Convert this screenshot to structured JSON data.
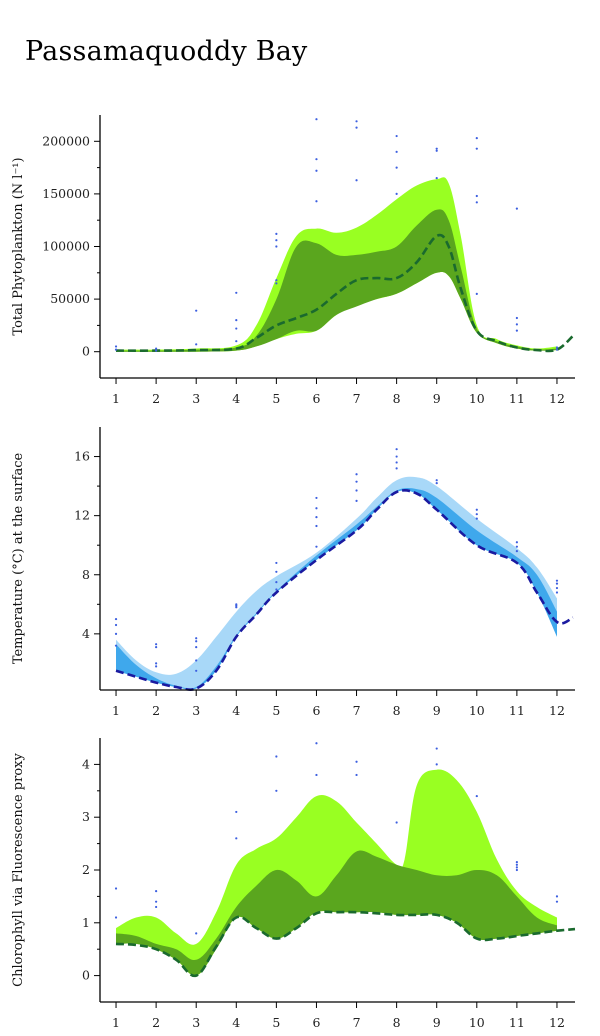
{
  "title": "Passamaquoddy Bay",
  "colors": {
    "light_green": "#99ff22",
    "dark_green": "#5aa61e",
    "green_line": "#1a6a2e",
    "light_blue": "#a8d8f8",
    "mid_blue": "#3fa8ec",
    "blue_line": "#1a1aa0",
    "point_blue": "#3c5fe0"
  },
  "chart_data": [
    {
      "id": "phyto",
      "type": "area",
      "ylabel": "Total Phytoplankton (N l⁻¹)",
      "xlim": [
        0.6,
        12.45
      ],
      "ylim": [
        -25000,
        225000
      ],
      "yticks": [
        0,
        50000,
        100000,
        150000,
        200000
      ],
      "ytick_labels": [
        "0",
        "50000",
        "100000",
        "150000",
        "200000"
      ],
      "xticks": [
        1,
        2,
        3,
        4,
        5,
        6,
        7,
        8,
        9,
        10,
        11,
        12
      ],
      "xtick_labels": [
        "1",
        "2",
        "3",
        "4",
        "5",
        "6",
        "7",
        "8",
        "9",
        "10",
        "11",
        "12"
      ],
      "outer_band": {
        "x": [
          1,
          2,
          3,
          4,
          4.5,
          5,
          5.5,
          6,
          6.5,
          7,
          7.5,
          8,
          8.5,
          9,
          9.3,
          9.6,
          10,
          10.5,
          11,
          11.5,
          12
        ],
        "upper": [
          2000,
          2000,
          3000,
          6000,
          25000,
          70000,
          110000,
          117000,
          113000,
          118000,
          130000,
          145000,
          158000,
          164000,
          160000,
          110000,
          25000,
          12000,
          6000,
          3000,
          5000
        ],
        "lower": [
          0,
          0,
          0,
          1000,
          5000,
          12000,
          17000,
          20000,
          35000,
          45000,
          50000,
          55000,
          65000,
          75000,
          72000,
          50000,
          18000,
          8000,
          3000,
          1000,
          1500
        ]
      },
      "inner_band": {
        "x": [
          1,
          2,
          3,
          4,
          4.5,
          5,
          5.5,
          6,
          6.5,
          7,
          7.5,
          8,
          8.5,
          9,
          9.3,
          9.6,
          10,
          10.5,
          11,
          11.5,
          12
        ],
        "upper": [
          1000,
          1000,
          2000,
          4000,
          15000,
          50000,
          100000,
          103000,
          92000,
          92000,
          95000,
          100000,
          120000,
          135000,
          125000,
          80000,
          22000,
          10000,
          5000,
          2000,
          3000
        ],
        "lower": [
          0,
          0,
          0,
          1000,
          5000,
          12000,
          20000,
          20000,
          35000,
          43000,
          50000,
          55000,
          65000,
          75000,
          72000,
          50000,
          18000,
          8000,
          3000,
          1000,
          1500
        ]
      },
      "median": {
        "x": [
          1,
          2,
          3,
          4,
          4.5,
          5,
          5.5,
          6,
          6.5,
          7,
          7.5,
          8,
          8.5,
          9,
          9.3,
          9.6,
          10,
          10.5,
          11,
          11.5,
          12,
          12.4
        ],
        "y": [
          1000,
          1000,
          1500,
          3000,
          13000,
          25000,
          32000,
          40000,
          55000,
          68000,
          70000,
          70000,
          85000,
          110000,
          100000,
          60000,
          20000,
          10000,
          4000,
          1500,
          2000,
          15000
        ]
      },
      "points": [
        [
          1,
          2000
        ],
        [
          1,
          5000
        ],
        [
          2,
          1000
        ],
        [
          2,
          3000
        ],
        [
          3,
          7000
        ],
        [
          3,
          39000
        ],
        [
          4,
          10000
        ],
        [
          4,
          22000
        ],
        [
          4,
          30000
        ],
        [
          4,
          56000
        ],
        [
          5,
          65000
        ],
        [
          5,
          68000
        ],
        [
          5,
          100000
        ],
        [
          5,
          106000
        ],
        [
          5,
          112000
        ],
        [
          6,
          143000
        ],
        [
          6,
          172000
        ],
        [
          6,
          183000
        ],
        [
          6,
          221000
        ],
        [
          7,
          163000
        ],
        [
          7,
          213000
        ],
        [
          7,
          219000
        ],
        [
          8,
          150000
        ],
        [
          8,
          175000
        ],
        [
          8,
          190000
        ],
        [
          8,
          205000
        ],
        [
          9,
          165000
        ],
        [
          9,
          191000
        ],
        [
          9,
          193000
        ],
        [
          10,
          55000
        ],
        [
          10,
          142000
        ],
        [
          10,
          148000
        ],
        [
          10,
          193000
        ],
        [
          10,
          203000
        ],
        [
          11,
          20000
        ],
        [
          11,
          26000
        ],
        [
          11,
          32000
        ],
        [
          11,
          136000
        ],
        [
          12,
          2000
        ],
        [
          12,
          4000
        ]
      ]
    },
    {
      "id": "temp",
      "type": "area",
      "ylabel": "Temperature (°C) at the surface",
      "xlim": [
        0.6,
        12.45
      ],
      "ylim": [
        0.2,
        18
      ],
      "yticks": [
        4,
        8,
        12,
        16
      ],
      "ytick_labels": [
        "4",
        "8",
        "12",
        "16"
      ],
      "xticks": [
        1,
        2,
        3,
        4,
        5,
        6,
        7,
        8,
        9,
        10,
        11,
        12
      ],
      "xtick_labels": [
        "1",
        "2",
        "3",
        "4",
        "5",
        "6",
        "7",
        "8",
        "9",
        "10",
        "11",
        "12"
      ],
      "outer_band": {
        "x": [
          1,
          1.5,
          2,
          2.5,
          3,
          3.5,
          4,
          4.5,
          5,
          6,
          7,
          7.5,
          8,
          8.5,
          9,
          10,
          11,
          11.5,
          12
        ],
        "upper": [
          3.6,
          2.2,
          1.4,
          1.3,
          2.2,
          3.8,
          5.5,
          6.9,
          7.9,
          9.5,
          11.8,
          13.2,
          14.4,
          14.6,
          14.0,
          11.8,
          9.8,
          8.5,
          6.4
        ],
        "lower": [
          1.5,
          1.1,
          0.7,
          0.4,
          0.3,
          1.5,
          3.8,
          5.3,
          6.8,
          9.0,
          11.0,
          12.4,
          13.6,
          13.5,
          12.4,
          10.0,
          8.8,
          6.8,
          3.8
        ]
      },
      "inner_band": {
        "x": [
          1,
          1.5,
          2,
          2.5,
          3,
          3.5,
          4,
          4.5,
          5,
          6,
          7,
          7.5,
          8,
          8.5,
          9,
          10,
          11,
          11.5,
          12
        ],
        "upper": [
          3.3,
          1.9,
          1.0,
          0.5,
          0.4,
          1.8,
          3.9,
          5.4,
          6.9,
          9.3,
          11.4,
          12.6,
          13.7,
          13.8,
          13.2,
          11.0,
          9.2,
          8.0,
          5.5
        ],
        "lower": [
          1.5,
          1.1,
          0.7,
          0.4,
          0.3,
          1.5,
          3.8,
          5.3,
          6.8,
          9.0,
          11.0,
          12.4,
          13.6,
          13.5,
          12.4,
          10.0,
          8.8,
          6.8,
          3.8
        ]
      },
      "median": {
        "x": [
          1,
          1.5,
          2,
          2.5,
          3,
          3.5,
          4,
          4.5,
          5,
          6,
          7,
          7.5,
          8,
          8.5,
          9,
          10,
          11,
          11.5,
          12,
          12.4
        ],
        "y": [
          1.5,
          1.1,
          0.7,
          0.4,
          0.3,
          1.5,
          3.8,
          5.3,
          6.8,
          9.0,
          11.0,
          12.4,
          13.6,
          13.5,
          12.4,
          10.0,
          8.8,
          6.8,
          4.8,
          5.1
        ]
      },
      "points": [
        [
          1,
          3.2
        ],
        [
          1,
          4.0
        ],
        [
          1,
          4.6
        ],
        [
          1,
          5.0
        ],
        [
          2,
          1.8
        ],
        [
          2,
          2.0
        ],
        [
          2,
          3.1
        ],
        [
          2,
          3.3
        ],
        [
          3,
          1.5
        ],
        [
          3,
          2.2
        ],
        [
          3,
          3.1
        ],
        [
          3,
          3.5
        ],
        [
          3,
          3.7
        ],
        [
          4,
          5.8
        ],
        [
          4,
          5.9
        ],
        [
          4,
          6.0
        ],
        [
          5,
          7.0
        ],
        [
          5,
          7.5
        ],
        [
          5,
          8.2
        ],
        [
          5,
          8.8
        ],
        [
          6,
          9.9
        ],
        [
          6,
          11.3
        ],
        [
          6,
          11.9
        ],
        [
          6,
          12.5
        ],
        [
          6,
          13.2
        ],
        [
          7,
          13.0
        ],
        [
          7,
          13.7
        ],
        [
          7,
          14.3
        ],
        [
          7,
          14.8
        ],
        [
          8,
          15.2
        ],
        [
          8,
          15.6
        ],
        [
          8,
          16.0
        ],
        [
          8,
          16.5
        ],
        [
          9,
          14.2
        ],
        [
          9,
          14.4
        ],
        [
          10,
          11.8
        ],
        [
          10,
          12.1
        ],
        [
          10,
          12.4
        ],
        [
          11,
          9.6
        ],
        [
          11,
          9.9
        ],
        [
          11,
          10.2
        ],
        [
          12,
          6.8
        ],
        [
          12,
          7.1
        ],
        [
          12,
          7.4
        ],
        [
          12,
          7.6
        ]
      ]
    },
    {
      "id": "chl",
      "type": "area",
      "ylabel": "Chlorophyll via Fluorescence proxy",
      "xlim": [
        0.6,
        12.45
      ],
      "ylim": [
        -0.5,
        4.5
      ],
      "yticks": [
        0,
        1,
        2,
        3,
        4
      ],
      "ytick_labels": [
        "0",
        "1",
        "2",
        "3",
        "4"
      ],
      "xticks": [
        1,
        2,
        3,
        4,
        5,
        6,
        7,
        8,
        9,
        10,
        11,
        12
      ],
      "xtick_labels": [
        "1",
        "2",
        "3",
        "4",
        "5",
        "6",
        "7",
        "8",
        "9",
        "10",
        "11",
        "12"
      ],
      "outer_band": {
        "x": [
          1,
          1.5,
          2,
          2.5,
          3,
          3.5,
          4,
          4.5,
          5,
          5.5,
          6,
          6.5,
          7,
          7.5,
          8,
          8.2,
          8.5,
          9,
          9.5,
          10,
          10.5,
          11,
          11.5,
          12
        ],
        "upper": [
          0.9,
          1.1,
          1.1,
          0.8,
          0.6,
          1.2,
          2.1,
          2.4,
          2.6,
          3.0,
          3.4,
          3.3,
          2.9,
          2.5,
          2.1,
          2.2,
          3.6,
          3.9,
          3.7,
          3.1,
          2.2,
          1.6,
          1.3,
          1.1
        ],
        "lower": [
          0.6,
          0.6,
          0.5,
          0.3,
          0.0,
          0.5,
          1.1,
          0.9,
          0.7,
          0.9,
          1.2,
          1.2,
          1.2,
          1.2,
          1.15,
          1.15,
          1.15,
          1.15,
          1.0,
          0.7,
          0.7,
          0.75,
          0.8,
          0.85
        ]
      },
      "inner_band": {
        "x": [
          1,
          1.5,
          2,
          2.5,
          3,
          3.5,
          4,
          4.5,
          5,
          5.5,
          6,
          6.5,
          7,
          7.5,
          8,
          8.5,
          9,
          9.5,
          10,
          10.5,
          11,
          11.5,
          12
        ],
        "upper": [
          0.8,
          0.75,
          0.6,
          0.5,
          0.3,
          0.7,
          1.3,
          1.7,
          2.0,
          1.8,
          1.5,
          1.9,
          2.35,
          2.25,
          2.1,
          2.0,
          1.9,
          1.9,
          2.0,
          1.9,
          1.5,
          1.1,
          0.95
        ],
        "lower": [
          0.6,
          0.6,
          0.5,
          0.3,
          0.0,
          0.5,
          1.1,
          0.9,
          0.7,
          0.9,
          1.2,
          1.2,
          1.2,
          1.2,
          1.15,
          1.15,
          1.15,
          1.0,
          0.7,
          0.7,
          0.75,
          0.8,
          0.85
        ]
      },
      "median": {
        "x": [
          1,
          1.5,
          2,
          2.5,
          3,
          3.5,
          4,
          4.5,
          5,
          5.5,
          6,
          6.5,
          7,
          7.5,
          8,
          8.5,
          9,
          9.5,
          10,
          10.5,
          11,
          11.5,
          12,
          12.45
        ],
        "y": [
          0.6,
          0.58,
          0.5,
          0.3,
          0.0,
          0.55,
          1.1,
          0.9,
          0.7,
          0.9,
          1.18,
          1.2,
          1.2,
          1.18,
          1.15,
          1.15,
          1.15,
          1.0,
          0.7,
          0.7,
          0.75,
          0.8,
          0.85,
          0.88
        ]
      },
      "points": [
        [
          1,
          1.1
        ],
        [
          1,
          1.65
        ],
        [
          2,
          1.3
        ],
        [
          2,
          1.4
        ],
        [
          2,
          1.6
        ],
        [
          3,
          0.8
        ],
        [
          4,
          2.6
        ],
        [
          4,
          3.1
        ],
        [
          5,
          3.5
        ],
        [
          5,
          4.15
        ],
        [
          6,
          3.8
        ],
        [
          6,
          4.4
        ],
        [
          7,
          3.8
        ],
        [
          7,
          4.05
        ],
        [
          8,
          2.9
        ],
        [
          9,
          4.0
        ],
        [
          9,
          4.3
        ],
        [
          10,
          3.4
        ],
        [
          11,
          2.0
        ],
        [
          11,
          2.05
        ],
        [
          11,
          2.1
        ],
        [
          11,
          2.15
        ],
        [
          12,
          1.4
        ],
        [
          12,
          1.5
        ]
      ]
    }
  ]
}
